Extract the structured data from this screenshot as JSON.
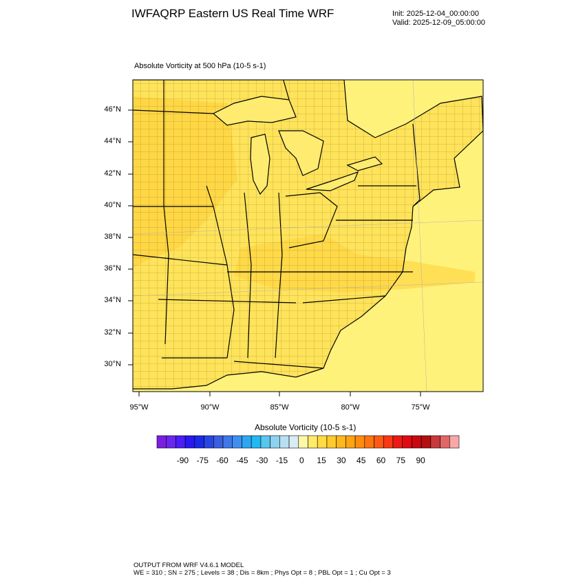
{
  "header": {
    "title": "IWFAQRP Eastern US Real Time WRF",
    "init": "Init: 2025-12-04_00:00:00",
    "valid": "Valid: 2025-12-09_05:00:00"
  },
  "map": {
    "subtitle": "Absolute Vorticity at 500 hPa   (10-5 s-1)",
    "lat_labels": [
      "46°N",
      "44°N",
      "42°N",
      "40°N",
      "38°N",
      "36°N",
      "34°N",
      "32°N",
      "30°N"
    ],
    "lon_labels": [
      "95°W",
      "90°W",
      "85°W",
      "80°W",
      "75°W"
    ],
    "field_colors": {
      "ocean": "#fff27a",
      "land": "#ffe35a",
      "stronger": "#ffd23c",
      "boundary": "#000000"
    }
  },
  "colorbar": {
    "title": "Absolute Vorticity  (10-5 s-1)",
    "tick_labels": [
      "-90",
      "-75",
      "-60",
      "-45",
      "-30",
      "-15",
      "0",
      "15",
      "30",
      "45",
      "60",
      "75",
      "90"
    ],
    "colors": [
      "#7a1fe0",
      "#6a27f0",
      "#4a1ef5",
      "#2a18f0",
      "#1a2ae8",
      "#2a46e0",
      "#3b5fe0",
      "#3f78e8",
      "#3f8ff0",
      "#2fa6f4",
      "#23b8f2",
      "#58c6ee",
      "#8ed2ef",
      "#b8e0f1",
      "#d8ecf6",
      "#fff7a8",
      "#ffea6a",
      "#ffdb44",
      "#ffca2c",
      "#ffb81c",
      "#ffa412",
      "#ff8c0e",
      "#ff7410",
      "#ff5a14",
      "#f83a14",
      "#ec1a14",
      "#e00a10",
      "#c80a10",
      "#b40e12",
      "#c83a3a",
      "#e26666",
      "#f8a8a8"
    ]
  },
  "footer": {
    "line1": "OUTPUT FROM WRF V4.6.1 MODEL",
    "line2": "WE = 310 ; SN = 275 ; Levels = 38 ; Dis = 8km ; Phys Opt = 8 ; PBL Opt = 1 ; Cu Opt = 3"
  }
}
